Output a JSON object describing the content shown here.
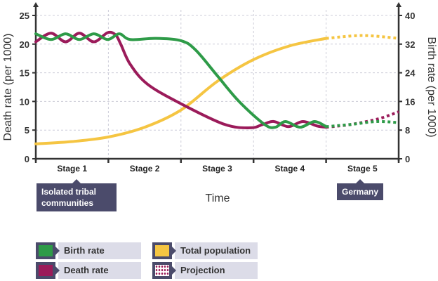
{
  "chart_data": {
    "type": "line",
    "xlabel": "Time",
    "ylabel_left": "Death rate (per 1000)",
    "ylabel_right": "Birth rate (per 1000)",
    "ylim_left": [
      0,
      25
    ],
    "ylim_right": [
      0,
      40
    ],
    "yticks_left": [
      "0",
      "5",
      "10",
      "15",
      "20",
      "25"
    ],
    "yticks_right": [
      "0",
      "8",
      "16",
      "24",
      "32",
      "40"
    ],
    "categories": [
      "Stage 1",
      "Stage 2",
      "Stage 3",
      "Stage 4",
      "Stage 5"
    ],
    "xlim": [
      0,
      5
    ],
    "grid": true,
    "series": [
      {
        "name": "Birth rate",
        "color": "#2e9b48",
        "points": [
          [
            0,
            21.8
          ],
          [
            0.21,
            20.8
          ],
          [
            0.41,
            21.8
          ],
          [
            0.6,
            20.8
          ],
          [
            0.8,
            21.8
          ],
          [
            0.99,
            20.8
          ],
          [
            1.15,
            21.8
          ],
          [
            1.3,
            20.8
          ],
          [
            1.65,
            21
          ],
          [
            2,
            20.6
          ],
          [
            2.2,
            19
          ],
          [
            2.5,
            14.5
          ],
          [
            2.8,
            10
          ],
          [
            3.15,
            6
          ],
          [
            3.3,
            5.5
          ],
          [
            3.44,
            6.5
          ],
          [
            3.64,
            5.5
          ],
          [
            3.84,
            6.5
          ],
          [
            4,
            5.6
          ]
        ],
        "projection": [
          [
            4,
            5.6
          ],
          [
            4.35,
            6
          ],
          [
            4.7,
            6.5
          ],
          [
            5,
            6.3
          ]
        ]
      },
      {
        "name": "Death rate",
        "color": "#9b1b5a",
        "points": [
          [
            0,
            20.4
          ],
          [
            0.21,
            21.9
          ],
          [
            0.41,
            20.4
          ],
          [
            0.6,
            21.9
          ],
          [
            0.8,
            20.4
          ],
          [
            0.99,
            22
          ],
          [
            1.1,
            21.6
          ],
          [
            1.17,
            20
          ],
          [
            1.3,
            16.5
          ],
          [
            1.54,
            13
          ],
          [
            2,
            9.6
          ],
          [
            2.6,
            6
          ],
          [
            2.96,
            5.4
          ],
          [
            3.13,
            6
          ],
          [
            3.28,
            6.5
          ],
          [
            3.48,
            5.6
          ],
          [
            3.68,
            6.5
          ],
          [
            3.88,
            5.7
          ],
          [
            4,
            5.5
          ]
        ],
        "projection": [
          [
            4,
            5.5
          ],
          [
            4.35,
            6
          ],
          [
            4.73,
            7
          ],
          [
            5,
            8.2
          ]
        ]
      },
      {
        "name": "Total population",
        "color": "#f5c542",
        "points": [
          [
            0,
            2.6
          ],
          [
            0.5,
            3
          ],
          [
            1,
            3.8
          ],
          [
            1.5,
            5.5
          ],
          [
            2,
            8.5
          ],
          [
            2.5,
            13.5
          ],
          [
            3,
            17.3
          ],
          [
            3.5,
            19.7
          ],
          [
            4,
            21
          ]
        ],
        "projection": [
          [
            4,
            21
          ],
          [
            4.5,
            21.5
          ],
          [
            5,
            21
          ]
        ]
      }
    ],
    "annotations": [
      {
        "text": "Isolated tribal communities",
        "stage": "Stage 1"
      },
      {
        "text": "Germany",
        "stage": "Stage 5"
      }
    ],
    "legend": {
      "placement": "bottom-left",
      "items": [
        "Birth rate",
        "Death rate",
        "Total population",
        "Projection"
      ]
    }
  }
}
